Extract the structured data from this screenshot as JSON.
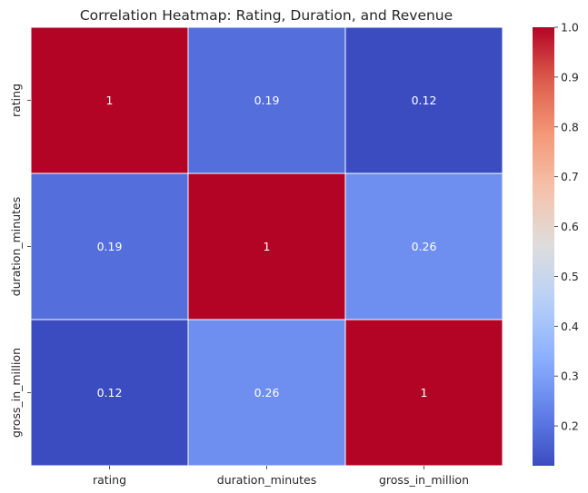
{
  "chart_data": {
    "type": "heatmap",
    "title": "Correlation Heatmap: Rating, Duration, and Revenue",
    "xlabel": "",
    "ylabel": "",
    "x_labels": [
      "rating",
      "duration_minutes",
      "gross_in_million"
    ],
    "y_labels": [
      "rating",
      "duration_minutes",
      "gross_in_million"
    ],
    "values": [
      [
        1.0,
        0.19,
        0.12
      ],
      [
        0.19,
        1.0,
        0.26
      ],
      [
        0.12,
        0.26,
        1.0
      ]
    ],
    "annotations": [
      [
        "1",
        "0.19",
        "0.12"
      ],
      [
        "0.19",
        "1",
        "0.26"
      ],
      [
        "0.12",
        "0.26",
        "1"
      ]
    ],
    "colormap": "coolwarm",
    "colorbar": {
      "range": [
        0.12,
        1.0
      ],
      "ticks": [
        0.2,
        0.3,
        0.4,
        0.5,
        0.6,
        0.7,
        0.8,
        0.9,
        1.0
      ],
      "tick_labels": [
        "0.2",
        "0.3",
        "0.4",
        "0.5",
        "0.6",
        "0.7",
        "0.8",
        "0.9",
        "1.0"
      ]
    },
    "cell_border_color": "#ffffff"
  }
}
